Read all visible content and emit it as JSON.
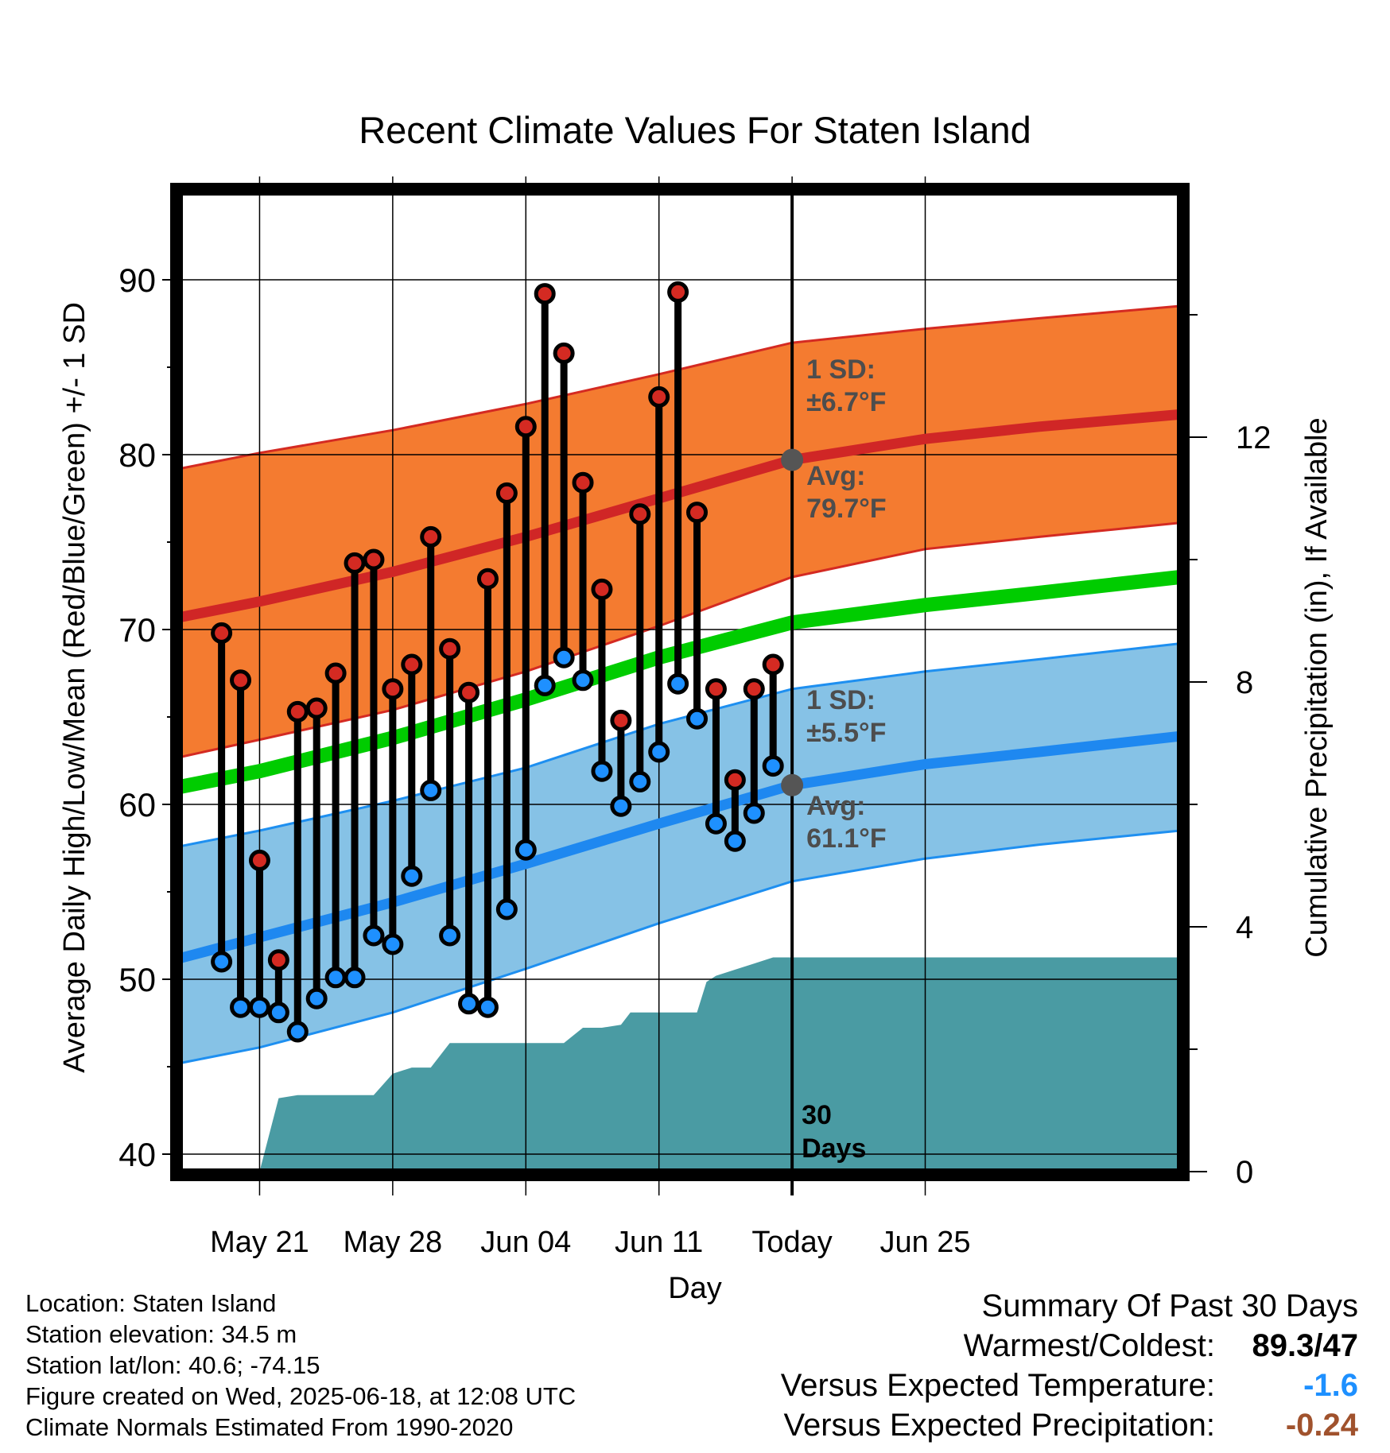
{
  "chart_data": {
    "type": "line",
    "title": "Recent Climate Values For Staten Island",
    "xlabel": "Day",
    "ylabel": "Average Daily High/Low/Mean (Red/Blue/Green) +/- 1 SD",
    "y2label": "Cumulative Precipitation (in), If Available",
    "ylim": [
      39,
      95
    ],
    "y2lim": [
      0,
      16
    ],
    "xlim": [
      -4.2,
      48.4
    ],
    "x_ticks": [
      {
        "day": 0,
        "label": "May 21"
      },
      {
        "day": 7,
        "label": "May 28"
      },
      {
        "day": 14,
        "label": "Jun 04"
      },
      {
        "day": 21,
        "label": "Jun 11"
      },
      {
        "day": 28,
        "label": "Today"
      },
      {
        "day": 35,
        "label": "Jun 25"
      }
    ],
    "y_ticks": [
      "40",
      "50",
      "60",
      "70",
      "80",
      "90"
    ],
    "y2_ticks": [
      "0",
      "4",
      "8",
      "12"
    ],
    "grid": true,
    "colors": {
      "high_band": "#f47b30",
      "high_band_edge": "#d42a22",
      "high_normal": "#d02626",
      "low_band": "#86c2e6",
      "low_band_edge": "#1e8ff0",
      "low_normal": "#1e88f0",
      "mean_normal": "#00cc00",
      "precip": "#4a9ba3",
      "high_marker": "#d42a22",
      "low_marker": "#1e90ff",
      "today_marker": "#555555",
      "annotation": "#4d4d4d"
    },
    "normals": {
      "x": [
        -4.2,
        0,
        7,
        14,
        21,
        28,
        35,
        41,
        48.4
      ],
      "high_mean": [
        70.7,
        71.6,
        73.3,
        75.3,
        77.5,
        79.7,
        80.9,
        81.6,
        82.3
      ],
      "high_upper": [
        79.2,
        80.1,
        81.4,
        82.9,
        84.6,
        86.4,
        87.2,
        87.8,
        88.5
      ],
      "high_lower": [
        62.7,
        63.7,
        65.4,
        67.6,
        70.2,
        73.0,
        74.6,
        75.3,
        76.1
      ],
      "mean": [
        61.0,
        61.9,
        63.8,
        66.0,
        68.4,
        70.4,
        71.4,
        72.1,
        73.0
      ],
      "low_mean": [
        51.2,
        52.4,
        54.4,
        56.6,
        58.9,
        61.1,
        62.3,
        63.0,
        63.9
      ],
      "low_upper": [
        57.6,
        58.5,
        60.2,
        62.1,
        64.6,
        66.6,
        67.6,
        68.3,
        69.2
      ],
      "low_lower": [
        45.2,
        46.1,
        48.1,
        50.6,
        53.2,
        55.6,
        56.9,
        57.7,
        58.5
      ]
    },
    "series": [
      {
        "name": "High",
        "x": [
          -2,
          -1,
          0,
          1,
          2,
          3,
          4,
          5,
          6,
          7,
          8,
          9,
          10,
          11,
          12,
          13,
          14,
          15,
          16,
          17,
          18,
          19,
          20,
          21,
          22,
          23,
          24,
          25,
          26,
          27
        ],
        "values": [
          69.8,
          67.1,
          56.8,
          51.1,
          65.3,
          65.5,
          67.5,
          73.8,
          74.0,
          66.6,
          68.0,
          75.3,
          68.9,
          66.4,
          72.9,
          77.8,
          81.6,
          89.2,
          85.8,
          78.4,
          72.3,
          64.8,
          76.6,
          83.3,
          89.3,
          76.7,
          66.6,
          61.4,
          66.6,
          68.0
        ]
      },
      {
        "name": "Low",
        "x": [
          -2,
          -1,
          0,
          1,
          2,
          3,
          4,
          5,
          6,
          7,
          8,
          9,
          10,
          11,
          12,
          13,
          14,
          15,
          16,
          17,
          18,
          19,
          20,
          21,
          22,
          23,
          24,
          25,
          26,
          27
        ],
        "values": [
          51.0,
          48.4,
          48.4,
          48.1,
          47.0,
          48.9,
          50.1,
          50.1,
          52.5,
          52.0,
          55.9,
          60.8,
          52.5,
          48.6,
          48.4,
          54.0,
          57.4,
          66.8,
          68.4,
          67.1,
          61.9,
          59.9,
          61.3,
          63.0,
          66.9,
          64.9,
          58.9,
          57.9,
          59.5,
          62.2
        ]
      },
      {
        "name": "Cumulative Precipitation",
        "x": [
          -4.2,
          0,
          1,
          2,
          5,
          6,
          7,
          8,
          8.5,
          9,
          10,
          10.5,
          12,
          13,
          15,
          16,
          17,
          17.5,
          18,
          19,
          19.5,
          20,
          21,
          22,
          23,
          23.5,
          24,
          25,
          26,
          27,
          28,
          48.4
        ],
        "values": [
          0,
          0,
          1.2,
          1.25,
          1.25,
          1.25,
          1.6,
          1.7,
          1.7,
          1.7,
          2.1,
          2.1,
          2.1,
          2.1,
          2.1,
          2.1,
          2.35,
          2.35,
          2.35,
          2.4,
          2.6,
          2.6,
          2.6,
          2.6,
          2.6,
          3.1,
          3.2,
          3.3,
          3.4,
          3.5,
          3.5,
          3.5
        ]
      }
    ],
    "today_day": 28,
    "today_high_avg": 79.7,
    "today_low_avg": 61.1,
    "annotations": {
      "high_sd_line1": "1 SD:",
      "high_sd_line2": "±6.7°F",
      "high_avg_line1": "Avg:",
      "high_avg_line2": "79.7°F",
      "low_sd_line1": "1 SD:",
      "low_sd_line2": "±5.5°F",
      "low_avg_line1": "Avg:",
      "low_avg_line2": "61.1°F",
      "days_line1": "30",
      "days_line2": "Days"
    }
  },
  "footer": {
    "location": "Location: Staten Island",
    "elevation": "Station elevation: 34.5 m",
    "latlon": "Station lat/lon: 40.6; -74.15",
    "created": "Figure created on Wed, 2025-06-18, at 12:08 UTC",
    "normals": "Climate Normals Estimated From 1990-2020"
  },
  "summary": {
    "heading": "Summary Of Past 30 Days",
    "warm_cold_label": "Warmest/Coldest:",
    "warmest": "89.3",
    "coldest": "/47",
    "temp_label": "Versus Expected Temperature:",
    "temp_value": "-1.6",
    "temp_color": "#1e90ff",
    "precip_label": "Versus Expected Precipitation:",
    "precip_value": "-0.24",
    "precip_color": "#a0522d"
  }
}
